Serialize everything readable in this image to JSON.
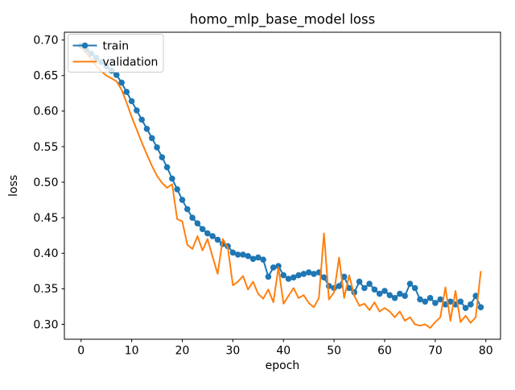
{
  "chart_data": {
    "type": "line",
    "title": "homo_mlp_base_model loss",
    "xlabel": "epoch",
    "ylabel": "loss",
    "x": [
      0,
      1,
      2,
      3,
      4,
      5,
      6,
      7,
      8,
      9,
      10,
      11,
      12,
      13,
      14,
      15,
      16,
      17,
      18,
      19,
      20,
      21,
      22,
      23,
      24,
      25,
      26,
      27,
      28,
      29,
      30,
      31,
      32,
      33,
      34,
      35,
      36,
      37,
      38,
      39,
      40,
      41,
      42,
      43,
      44,
      45,
      46,
      47,
      48,
      49,
      50,
      51,
      52,
      53,
      54,
      55,
      56,
      57,
      58,
      59,
      60,
      61,
      62,
      63,
      64,
      65,
      66,
      67,
      68,
      69,
      70,
      71,
      72,
      73,
      74,
      75,
      76,
      77,
      78,
      79
    ],
    "series": [
      {
        "name": "train",
        "color": "#1f77b4",
        "marker": "circle",
        "values": [
          0.692,
          0.686,
          0.681,
          0.675,
          0.669,
          0.663,
          0.657,
          0.651,
          0.64,
          0.627,
          0.614,
          0.601,
          0.588,
          0.575,
          0.562,
          0.549,
          0.535,
          0.521,
          0.505,
          0.49,
          0.475,
          0.462,
          0.45,
          0.442,
          0.434,
          0.428,
          0.424,
          0.419,
          0.413,
          0.41,
          0.401,
          0.398,
          0.398,
          0.396,
          0.392,
          0.394,
          0.391,
          0.367,
          0.38,
          0.382,
          0.369,
          0.364,
          0.366,
          0.369,
          0.371,
          0.373,
          0.371,
          0.373,
          0.366,
          0.354,
          0.351,
          0.354,
          0.367,
          0.351,
          0.345,
          0.36,
          0.351,
          0.357,
          0.349,
          0.343,
          0.347,
          0.341,
          0.337,
          0.343,
          0.34,
          0.357,
          0.351,
          0.335,
          0.332,
          0.337,
          0.33,
          0.335,
          0.328,
          0.332,
          0.328,
          0.332,
          0.323,
          0.328,
          0.34,
          0.324
        ]
      },
      {
        "name": "validation",
        "color": "#ff7f0e",
        "marker": "none",
        "values": [
          0.69,
          0.682,
          0.673,
          0.664,
          0.656,
          0.65,
          0.646,
          0.642,
          0.63,
          0.612,
          0.592,
          0.574,
          0.556,
          0.539,
          0.523,
          0.509,
          0.499,
          0.492,
          0.497,
          0.448,
          0.445,
          0.412,
          0.406,
          0.424,
          0.404,
          0.42,
          0.395,
          0.371,
          0.42,
          0.408,
          0.355,
          0.36,
          0.368,
          0.349,
          0.36,
          0.343,
          0.336,
          0.349,
          0.331,
          0.38,
          0.329,
          0.34,
          0.351,
          0.337,
          0.341,
          0.33,
          0.324,
          0.337,
          0.428,
          0.335,
          0.345,
          0.394,
          0.337,
          0.369,
          0.34,
          0.326,
          0.329,
          0.32,
          0.331,
          0.318,
          0.323,
          0.318,
          0.31,
          0.318,
          0.305,
          0.31,
          0.3,
          0.298,
          0.3,
          0.295,
          0.303,
          0.31,
          0.352,
          0.305,
          0.347,
          0.303,
          0.312,
          0.302,
          0.31,
          0.375
        ]
      }
    ],
    "xticks": [
      0,
      10,
      20,
      30,
      40,
      50,
      60,
      70,
      80
    ],
    "yticks": [
      0.3,
      0.35,
      0.4,
      0.45,
      0.5,
      0.55,
      0.6,
      0.65,
      0.7
    ],
    "xlim": [
      -3.3,
      82.9
    ],
    "ylim": [
      0.279,
      0.711
    ],
    "grid": false,
    "legend": {
      "location": "upper left",
      "entries": [
        "train",
        "validation"
      ]
    },
    "colors": {
      "frame": "#000000",
      "background": "#ffffff",
      "legend_border": "#cccccc"
    }
  }
}
